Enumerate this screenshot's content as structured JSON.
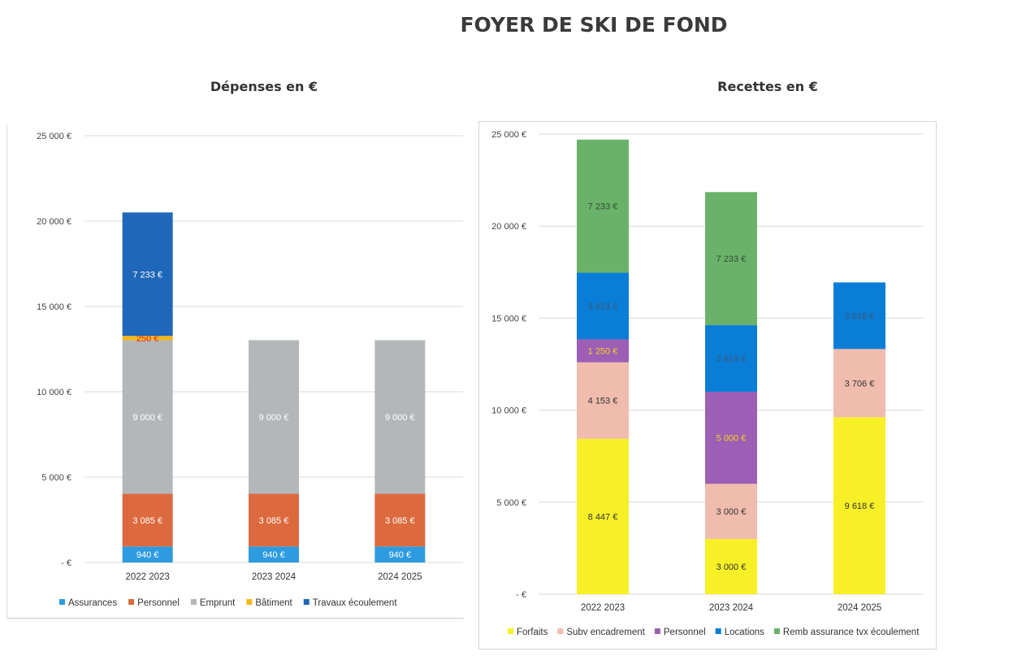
{
  "page": {
    "title": "FOYER DE SKI DE FOND"
  },
  "chart_data": [
    {
      "type": "bar",
      "stacked": true,
      "title": "Dépenses en €",
      "categories": [
        "2022 2023",
        "2023 2024",
        "2024 2025"
      ],
      "ylim": [
        0,
        25000
      ],
      "yticks": [
        0,
        5000,
        10000,
        15000,
        20000,
        25000
      ],
      "ytick_labels": [
        "- €",
        "5 000 €",
        "10 000 €",
        "15 000 €",
        "20 000 €",
        "25 000 €"
      ],
      "grid": true,
      "legend_position": "bottom",
      "series": [
        {
          "name": "Assurances",
          "color": "#2e9be0",
          "label_color": "#ffffff",
          "values": [
            940,
            940,
            940
          ],
          "labels": [
            "940 €",
            "940 €",
            "940 €"
          ]
        },
        {
          "name": "Personnel",
          "color": "#dc6a3e",
          "label_color": "#ffffff",
          "values": [
            3085,
            3085,
            3085
          ],
          "labels": [
            "3 085 €",
            "3 085 €",
            "3 085 €"
          ]
        },
        {
          "name": "Emprunt",
          "color": "#b4b7b9",
          "label_color": "#ffffff",
          "values": [
            9000,
            9000,
            9000
          ],
          "labels": [
            "9 000 €",
            "9 000 €",
            "9 000 €"
          ]
        },
        {
          "name": "Bâtiment",
          "color": "#f5b819",
          "label_color": "#e8221f",
          "values": [
            250,
            0,
            0
          ],
          "labels": [
            "250 €",
            "",
            ""
          ]
        },
        {
          "name": "Travaux écoulement",
          "color": "#1f67b8",
          "label_color": "#ffffff",
          "values": [
            7233,
            0,
            0
          ],
          "labels": [
            "7 233 €",
            "",
            ""
          ]
        }
      ]
    },
    {
      "type": "bar",
      "stacked": true,
      "title": "Recettes en €",
      "categories": [
        "2022 2023",
        "2023 2024",
        "2024 2025"
      ],
      "ylim": [
        0,
        25000
      ],
      "yticks": [
        0,
        5000,
        10000,
        15000,
        20000,
        25000
      ],
      "ytick_labels": [
        "- €",
        "5 000 €",
        "10 000 €",
        "15 000 €",
        "20 000 €",
        "25 000 €"
      ],
      "grid": true,
      "legend_position": "bottom",
      "series": [
        {
          "name": "Forfaits",
          "color": "#f7f027",
          "label_color": "#333333",
          "values": [
            8447,
            3000,
            9618
          ],
          "labels": [
            "8 447 €",
            "3 000 €",
            "9 618 €"
          ]
        },
        {
          "name": "Subv encadrement",
          "color": "#efbcad",
          "label_color": "#333333",
          "values": [
            4153,
            3000,
            3706
          ],
          "labels": [
            "4 153 €",
            "3 000 €",
            "3 706 €"
          ]
        },
        {
          "name": "Personnel",
          "color": "#9c5fb5",
          "label_color": "#f7d21a",
          "values": [
            1250,
            5000,
            0
          ],
          "labels": [
            "1 250 €",
            "5 000 €",
            ""
          ]
        },
        {
          "name": "Locations",
          "color": "#0a7dd6",
          "label_color": "#3a5a7a",
          "values": [
            3618,
            3618,
            3618
          ],
          "labels": [
            "3 618 €",
            "3 618 €",
            "3 618 €"
          ]
        },
        {
          "name": "Remb assurance tvx écoulement",
          "color": "#6ab26a",
          "label_color": "#2f4f2f",
          "values": [
            7233,
            7233,
            0
          ],
          "labels": [
            "7 233 €",
            "7 233 €",
            ""
          ]
        }
      ]
    }
  ]
}
